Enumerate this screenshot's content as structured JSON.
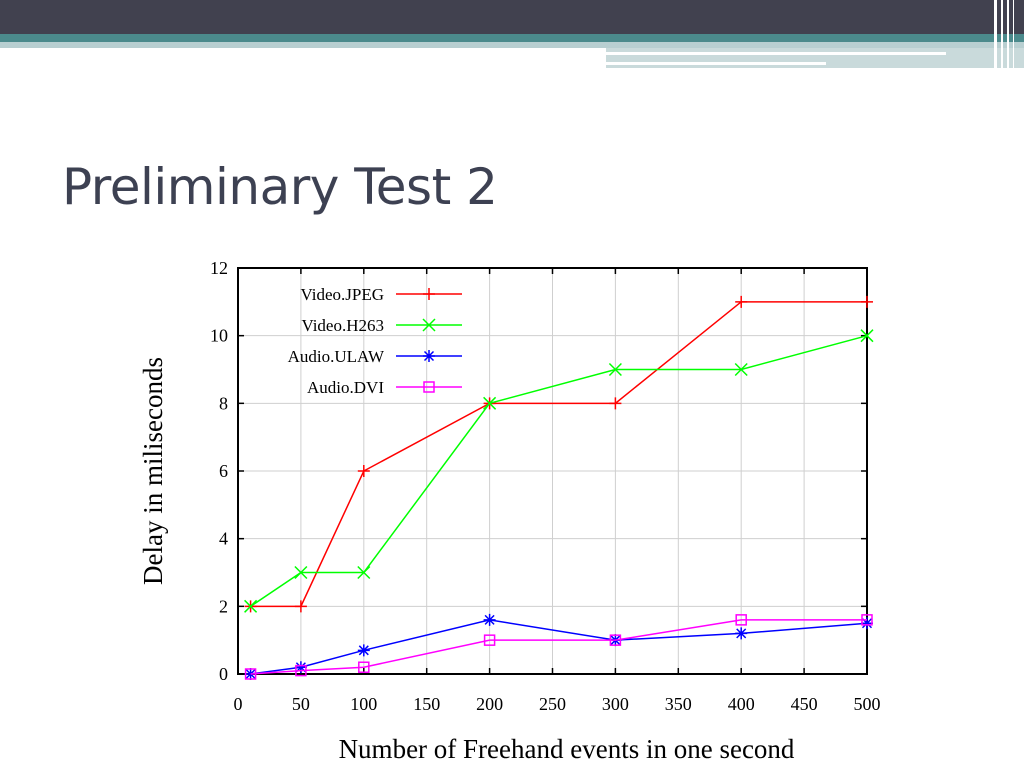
{
  "slide": {
    "title": "Preliminary Test 2",
    "colors": {
      "banner_dark": "#41414f",
      "banner_teal": "#4b8a8c",
      "banner_light": "#b8cfd1",
      "title": "#3d4152"
    }
  },
  "chart_data": {
    "type": "line",
    "title": "",
    "xlabel": "Number of Freehand events in one second",
    "ylabel": "Delay in miliseconds",
    "xlim": [
      0,
      500
    ],
    "ylim": [
      0,
      12
    ],
    "xticks": [
      0,
      50,
      100,
      150,
      200,
      250,
      300,
      350,
      400,
      450,
      500
    ],
    "yticks": [
      0,
      2,
      4,
      6,
      8,
      10,
      12
    ],
    "grid": true,
    "legend_position": "top-left",
    "series": [
      {
        "name": "Video.JPEG",
        "color": "#ff0000",
        "marker": "plus",
        "x": [
          10,
          50,
          100,
          200,
          300,
          400,
          500
        ],
        "y": [
          2,
          2,
          6,
          8,
          8,
          11,
          11
        ]
      },
      {
        "name": "Video.H263",
        "color": "#00ff00",
        "marker": "cross",
        "x": [
          10,
          50,
          100,
          200,
          300,
          400,
          500
        ],
        "y": [
          2,
          3,
          3,
          8,
          9,
          9,
          10
        ]
      },
      {
        "name": "Audio.ULAW",
        "color": "#0000ff",
        "marker": "star",
        "x": [
          10,
          50,
          100,
          200,
          300,
          400,
          500
        ],
        "y": [
          0,
          0.2,
          0.7,
          1.6,
          1.0,
          1.2,
          1.5
        ]
      },
      {
        "name": "Audio.DVI",
        "color": "#ff00ff",
        "marker": "square",
        "x": [
          10,
          50,
          100,
          200,
          300,
          400,
          500
        ],
        "y": [
          0,
          0.1,
          0.2,
          1.0,
          1.0,
          1.6,
          1.6
        ]
      }
    ]
  }
}
